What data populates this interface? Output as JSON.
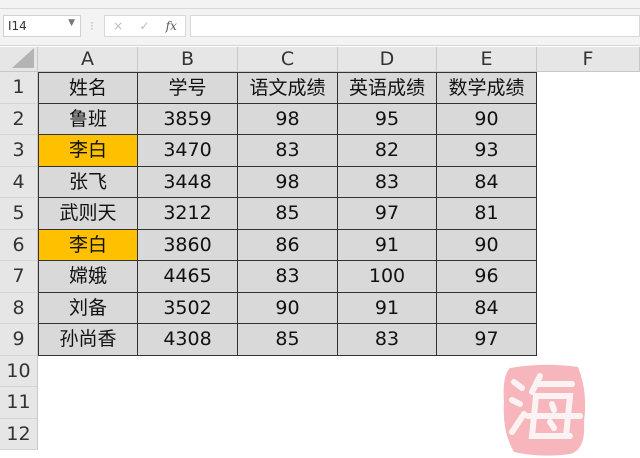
{
  "formula_bar": {
    "name_box": "I14",
    "cancel_icon": "×",
    "enter_icon": "✓",
    "fx_label": "fx",
    "formula": ""
  },
  "columns": [
    "A",
    "B",
    "C",
    "D",
    "E",
    "F"
  ],
  "rows": [
    "1",
    "2",
    "3",
    "4",
    "5",
    "6",
    "7",
    "8",
    "9",
    "10",
    "11",
    "12"
  ],
  "table": {
    "header": [
      "姓名",
      "学号",
      "语文成绩",
      "英语成绩",
      "数学成绩"
    ],
    "data": [
      [
        "鲁班",
        "3859",
        "98",
        "95",
        "90"
      ],
      [
        "李白",
        "3470",
        "83",
        "82",
        "93"
      ],
      [
        "张飞",
        "3448",
        "98",
        "83",
        "84"
      ],
      [
        "武则天",
        "3212",
        "85",
        "97",
        "81"
      ],
      [
        "李白",
        "3860",
        "86",
        "91",
        "90"
      ],
      [
        "嫦娥",
        "4465",
        "83",
        "100",
        "96"
      ],
      [
        "刘备",
        "3502",
        "90",
        "91",
        "84"
      ],
      [
        "孙尚香",
        "4308",
        "85",
        "83",
        "97"
      ]
    ],
    "highlighted_rows": [
      1,
      4
    ],
    "highlight_color": "#ffc000"
  },
  "watermark": {
    "text": "海"
  }
}
